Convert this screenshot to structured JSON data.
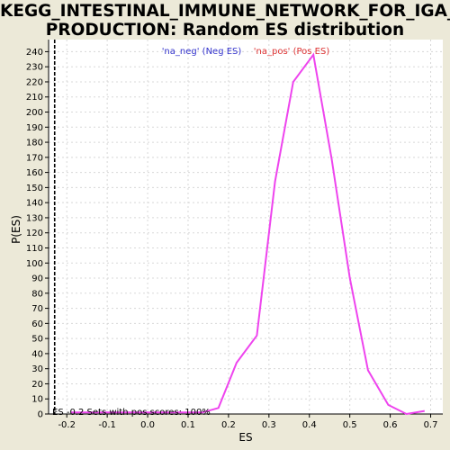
{
  "chart_data": {
    "type": "line",
    "title_line1": "KEGG_INTESTINAL_IMMUNE_NETWORK_FOR_IGA_",
    "title_line2": "PRODUCTION: Random ES distribution",
    "xlabel": "ES",
    "ylabel": "P(ES)",
    "xlim": [
      -0.245,
      0.73
    ],
    "ylim": [
      0,
      248
    ],
    "x_ticks": [
      -0.2,
      -0.1,
      0.0,
      0.1,
      0.2,
      0.3,
      0.4,
      0.5,
      0.6,
      0.7
    ],
    "x_tick_labels": [
      "-0.2",
      "-0.1",
      "0.0",
      "0.1",
      "0.2",
      "0.3",
      "0.4",
      "0.5",
      "0.6",
      "0.7"
    ],
    "y_ticks": [
      0,
      10,
      20,
      30,
      40,
      50,
      60,
      70,
      80,
      90,
      100,
      110,
      120,
      130,
      140,
      150,
      160,
      170,
      180,
      190,
      200,
      210,
      220,
      230,
      240
    ],
    "grid": true,
    "legend": [
      {
        "label": "'na_neg' (Neg ES)",
        "color": "#3333cc"
      },
      {
        "label": "'na_pos' (Pos ES)",
        "color": "#dd3333"
      }
    ],
    "series": [
      {
        "name": "Random ES distribution",
        "color": "#ee44ee",
        "x": [
          -0.19,
          0.135,
          0.175,
          0.22,
          0.27,
          0.315,
          0.36,
          0.41,
          0.455,
          0.5,
          0.545,
          0.595,
          0.64,
          0.685
        ],
        "y": [
          1,
          1,
          4,
          34,
          52,
          154,
          220,
          238,
          169,
          90,
          29,
          6,
          0,
          2
        ]
      }
    ],
    "es_marker": {
      "x": -0.23,
      "label": "ES -0.2 Sets with pos scores: 100%"
    }
  }
}
